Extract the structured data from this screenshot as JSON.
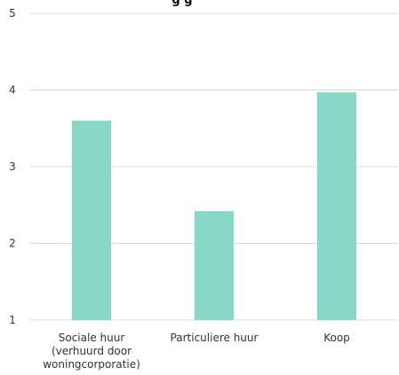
{
  "chart_data": {
    "type": "bar",
    "title": "",
    "xlabel": "",
    "ylabel": "",
    "categories": [
      [
        "Sociale huur",
        "(verhuurd door",
        "woningcorporatie)"
      ],
      [
        "Particuliere huur"
      ],
      [
        "Koop"
      ]
    ],
    "values": [
      3.6,
      2.42,
      3.97
    ],
    "ylim": [
      1,
      5
    ],
    "yticks": [
      1,
      2,
      3,
      4,
      5
    ],
    "grid": true,
    "legend": "none",
    "bar_color": "#88d8c8",
    "grid_color": "#d9d9d9",
    "title_partial_words": "g   g"
  }
}
